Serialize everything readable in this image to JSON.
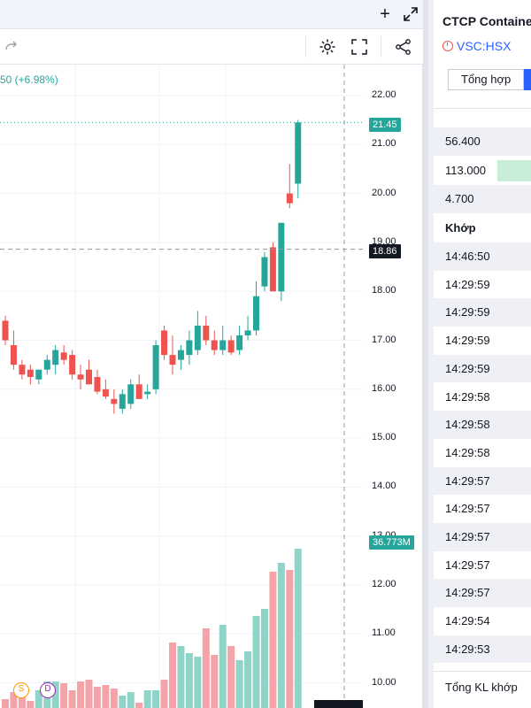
{
  "toolbar": {
    "add_icon": "plus-icon",
    "expand_icon": "expand-icon",
    "redo_icon": "redo-icon",
    "settings_icon": "gear-icon",
    "fullscreen_icon": "fullscreen-icon",
    "share_icon": "share-icon"
  },
  "chart": {
    "change_text": "50 (+6.98%)",
    "last_price_label": "21.45",
    "crosshair_price_label": "18.86",
    "volume_label": "36.773M",
    "badges": [
      "S",
      "D"
    ],
    "colors": {
      "up": "#26a69a",
      "down": "#ef5350",
      "up_volume": "#8fd3c9",
      "down_volume": "#f4a3a8"
    }
  },
  "chart_data": {
    "type": "candlestick",
    "y_ticks": [
      "22.00",
      "21.00",
      "20.00",
      "19.00",
      "18.00",
      "17.00",
      "16.00",
      "15.00",
      "14.00",
      "13.00",
      "12.00",
      "11.00",
      "10.00"
    ],
    "ylim": [
      9.8,
      22.5
    ],
    "candles": [
      {
        "o": 17.4,
        "h": 17.5,
        "l": 16.9,
        "c": 17.0
      },
      {
        "o": 16.9,
        "h": 17.2,
        "l": 16.4,
        "c": 16.5
      },
      {
        "o": 16.5,
        "h": 16.6,
        "l": 16.2,
        "c": 16.3
      },
      {
        "o": 16.4,
        "h": 16.5,
        "l": 16.1,
        "c": 16.25
      },
      {
        "o": 16.2,
        "h": 16.4,
        "l": 16.1,
        "c": 16.4
      },
      {
        "o": 16.4,
        "h": 16.7,
        "l": 16.3,
        "c": 16.6
      },
      {
        "o": 16.5,
        "h": 16.9,
        "l": 16.3,
        "c": 16.8
      },
      {
        "o": 16.75,
        "h": 16.9,
        "l": 16.5,
        "c": 16.6
      },
      {
        "o": 16.7,
        "h": 16.8,
        "l": 16.2,
        "c": 16.3
      },
      {
        "o": 16.3,
        "h": 16.5,
        "l": 16.0,
        "c": 16.2
      },
      {
        "o": 16.4,
        "h": 16.6,
        "l": 16.1,
        "c": 16.1
      },
      {
        "o": 16.25,
        "h": 16.4,
        "l": 15.9,
        "c": 15.95
      },
      {
        "o": 16.0,
        "h": 16.2,
        "l": 15.8,
        "c": 15.85
      },
      {
        "o": 15.8,
        "h": 16.0,
        "l": 15.5,
        "c": 15.7
      },
      {
        "o": 15.6,
        "h": 16.0,
        "l": 15.5,
        "c": 15.9
      },
      {
        "o": 15.7,
        "h": 16.2,
        "l": 15.6,
        "c": 16.1
      },
      {
        "o": 16.1,
        "h": 16.3,
        "l": 15.8,
        "c": 15.8
      },
      {
        "o": 15.9,
        "h": 16.1,
        "l": 15.8,
        "c": 15.95
      },
      {
        "o": 16.0,
        "h": 17.0,
        "l": 15.9,
        "c": 16.9
      },
      {
        "o": 17.2,
        "h": 17.3,
        "l": 16.6,
        "c": 16.7
      },
      {
        "o": 16.7,
        "h": 17.1,
        "l": 16.3,
        "c": 16.5
      },
      {
        "o": 16.6,
        "h": 16.9,
        "l": 16.4,
        "c": 16.8
      },
      {
        "o": 16.7,
        "h": 17.2,
        "l": 16.5,
        "c": 17.0
      },
      {
        "o": 16.8,
        "h": 17.6,
        "l": 16.7,
        "c": 17.3
      },
      {
        "o": 17.3,
        "h": 17.5,
        "l": 16.9,
        "c": 17.0
      },
      {
        "o": 17.0,
        "h": 17.2,
        "l": 16.7,
        "c": 16.8
      },
      {
        "o": 16.8,
        "h": 17.3,
        "l": 16.7,
        "c": 17.0
      },
      {
        "o": 17.0,
        "h": 17.1,
        "l": 16.7,
        "c": 16.75
      },
      {
        "o": 16.8,
        "h": 17.3,
        "l": 16.7,
        "c": 17.1
      },
      {
        "o": 17.1,
        "h": 17.5,
        "l": 17.0,
        "c": 17.2
      },
      {
        "o": 17.2,
        "h": 18.2,
        "l": 17.1,
        "c": 17.9
      },
      {
        "o": 18.1,
        "h": 18.8,
        "l": 18.0,
        "c": 18.7
      },
      {
        "o": 18.9,
        "h": 19.0,
        "l": 18.0,
        "c": 18.0
      },
      {
        "o": 18.0,
        "h": 19.4,
        "l": 17.8,
        "c": 19.4
      },
      {
        "o": 20.0,
        "h": 20.6,
        "l": 19.7,
        "c": 19.8
      },
      {
        "o": 20.2,
        "h": 21.5,
        "l": 19.9,
        "c": 21.45
      }
    ],
    "volume_ratios": [
      0.05,
      0.09,
      0.1,
      0.04,
      0.1,
      0.15,
      0.15,
      0.14,
      0.1,
      0.15,
      0.16,
      0.12,
      0.13,
      0.11,
      0.07,
      0.09,
      0.03,
      0.1,
      0.1,
      0.16,
      0.37,
      0.35,
      0.31,
      0.29,
      0.45,
      0.3,
      0.47,
      0.35,
      0.27,
      0.32,
      0.52,
      0.56,
      0.77,
      0.82,
      0.78,
      0.9
    ]
  },
  "sidebar": {
    "company": "CTCP Containe",
    "ticker": "VSC:HSX",
    "tabs": [
      "Tổng hợp",
      ""
    ],
    "stats": [
      "56.400",
      "113.000",
      "4.700"
    ],
    "khop_title": "Khớp",
    "times": [
      "14:46:50",
      "14:29:59",
      "14:29:59",
      "14:29:59",
      "14:29:59",
      "14:29:58",
      "14:29:58",
      "14:29:58",
      "14:29:57",
      "14:29:57",
      "14:29:57",
      "14:29:57",
      "14:29:57",
      "14:29:54",
      "14:29:53"
    ],
    "total_label": "Tổng KL khớp"
  }
}
